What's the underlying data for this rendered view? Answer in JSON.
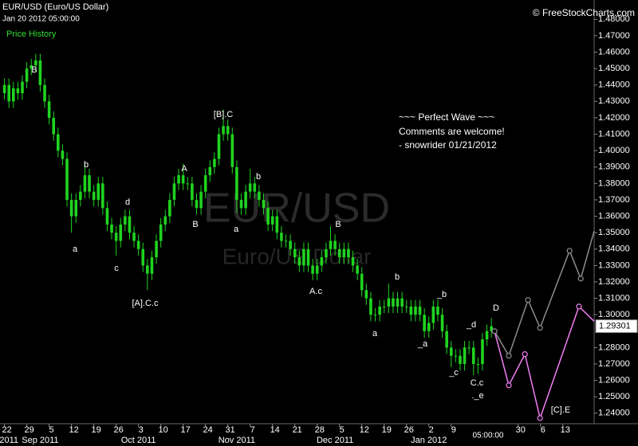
{
  "chart_data": {
    "type": "candlestick",
    "title": "EUR/USD (Euro/US Dollar)",
    "subtitle": "Jan 20 2012 05:00:00",
    "legend_label": "Price History",
    "copyright": "© FreeStockCharts.com",
    "watermark": "EUR/USD",
    "watermark_sub": "Euro/US Dollar",
    "notes": [
      "~~~ Perfect Wave ~~~",
      "Comments are welcome!",
      "- snowrider  01/21/2012"
    ],
    "annotations": [
      "B",
      "a",
      "b",
      "c",
      "d",
      "[A].C.c",
      "A",
      "B",
      "[B].C",
      "a",
      "b",
      "A.c",
      "B",
      "a",
      "b",
      "_b",
      "_a",
      "_c",
      "_d",
      "D",
      "C.c",
      "._e",
      "[C].E"
    ],
    "cursor_time": "05:00:00",
    "last_price": {
      "value": 1.29301,
      "label": "1.29301"
    },
    "color": "#1fd41f",
    "ohlc": [
      [
        1.435,
        1.444,
        1.431,
        1.44
      ],
      [
        1.44,
        1.444,
        1.426,
        1.43
      ],
      [
        1.43,
        1.442,
        1.426,
        1.438
      ],
      [
        1.438,
        1.442,
        1.431,
        1.435
      ],
      [
        1.435,
        1.446,
        1.431,
        1.442
      ],
      [
        1.442,
        1.454,
        1.438,
        1.45
      ],
      [
        1.45,
        1.456,
        1.446,
        1.452
      ],
      [
        1.452,
        1.459,
        1.448,
        1.455
      ],
      [
        1.455,
        1.459,
        1.436,
        1.44
      ],
      [
        1.44,
        1.444,
        1.426,
        1.43
      ],
      [
        1.43,
        1.434,
        1.416,
        1.42
      ],
      [
        1.42,
        1.424,
        1.406,
        1.41
      ],
      [
        1.41,
        1.414,
        1.396,
        1.4
      ],
      [
        1.4,
        1.404,
        1.391,
        1.395
      ],
      [
        1.395,
        1.399,
        1.366,
        1.37
      ],
      [
        1.37,
        1.374,
        1.35,
        1.36
      ],
      [
        1.36,
        1.374,
        1.356,
        1.37
      ],
      [
        1.37,
        1.379,
        1.366,
        1.375
      ],
      [
        1.375,
        1.392,
        1.371,
        1.385
      ],
      [
        1.385,
        1.389,
        1.371,
        1.375
      ],
      [
        1.375,
        1.379,
        1.366,
        1.37
      ],
      [
        1.37,
        1.384,
        1.366,
        1.38
      ],
      [
        1.38,
        1.384,
        1.361,
        1.365
      ],
      [
        1.365,
        1.369,
        1.351,
        1.355
      ],
      [
        1.355,
        1.359,
        1.346,
        1.35
      ],
      [
        1.35,
        1.354,
        1.336,
        1.345
      ],
      [
        1.345,
        1.359,
        1.341,
        1.355
      ],
      [
        1.355,
        1.364,
        1.351,
        1.36
      ],
      [
        1.36,
        1.364,
        1.346,
        1.35
      ],
      [
        1.35,
        1.354,
        1.341,
        1.345
      ],
      [
        1.345,
        1.349,
        1.336,
        1.34
      ],
      [
        1.34,
        1.344,
        1.326,
        1.33
      ],
      [
        1.33,
        1.334,
        1.315,
        1.325
      ],
      [
        1.325,
        1.339,
        1.321,
        1.335
      ],
      [
        1.335,
        1.349,
        1.331,
        1.345
      ],
      [
        1.345,
        1.359,
        1.341,
        1.355
      ],
      [
        1.355,
        1.364,
        1.351,
        1.36
      ],
      [
        1.36,
        1.374,
        1.356,
        1.37
      ],
      [
        1.37,
        1.384,
        1.366,
        1.38
      ],
      [
        1.38,
        1.389,
        1.376,
        1.385
      ],
      [
        1.385,
        1.392,
        1.376,
        1.38
      ],
      [
        1.38,
        1.384,
        1.376,
        1.38
      ],
      [
        1.38,
        1.384,
        1.366,
        1.37
      ],
      [
        1.37,
        1.374,
        1.361,
        1.365
      ],
      [
        1.365,
        1.379,
        1.361,
        1.375
      ],
      [
        1.375,
        1.389,
        1.371,
        1.385
      ],
      [
        1.385,
        1.394,
        1.381,
        1.39
      ],
      [
        1.39,
        1.399,
        1.386,
        1.395
      ],
      [
        1.395,
        1.414,
        1.391,
        1.41
      ],
      [
        1.41,
        1.425,
        1.406,
        1.415
      ],
      [
        1.415,
        1.419,
        1.406,
        1.41
      ],
      [
        1.41,
        1.414,
        1.386,
        1.39
      ],
      [
        1.39,
        1.394,
        1.362,
        1.37
      ],
      [
        1.37,
        1.374,
        1.361,
        1.365
      ],
      [
        1.365,
        1.379,
        1.361,
        1.375
      ],
      [
        1.375,
        1.389,
        1.371,
        1.38
      ],
      [
        1.38,
        1.384,
        1.371,
        1.375
      ],
      [
        1.375,
        1.379,
        1.366,
        1.37
      ],
      [
        1.37,
        1.374,
        1.361,
        1.365
      ],
      [
        1.365,
        1.369,
        1.351,
        1.355
      ],
      [
        1.355,
        1.364,
        1.351,
        1.36
      ],
      [
        1.36,
        1.364,
        1.346,
        1.35
      ],
      [
        1.35,
        1.354,
        1.341,
        1.345
      ],
      [
        1.345,
        1.349,
        1.341,
        1.345
      ],
      [
        1.345,
        1.349,
        1.336,
        1.34
      ],
      [
        1.34,
        1.344,
        1.331,
        1.335
      ],
      [
        1.335,
        1.339,
        1.326,
        1.33
      ],
      [
        1.33,
        1.344,
        1.326,
        1.34
      ],
      [
        1.34,
        1.344,
        1.326,
        1.33
      ],
      [
        1.33,
        1.334,
        1.321,
        1.325
      ],
      [
        1.325,
        1.334,
        1.321,
        1.33
      ],
      [
        1.33,
        1.339,
        1.326,
        1.335
      ],
      [
        1.335,
        1.344,
        1.331,
        1.34
      ],
      [
        1.34,
        1.354,
        1.336,
        1.345
      ],
      [
        1.345,
        1.349,
        1.336,
        1.34
      ],
      [
        1.34,
        1.344,
        1.331,
        1.335
      ],
      [
        1.335,
        1.344,
        1.331,
        1.34
      ],
      [
        1.34,
        1.344,
        1.331,
        1.335
      ],
      [
        1.335,
        1.339,
        1.326,
        1.33
      ],
      [
        1.33,
        1.334,
        1.321,
        1.325
      ],
      [
        1.325,
        1.329,
        1.311,
        1.315
      ],
      [
        1.315,
        1.319,
        1.306,
        1.31
      ],
      [
        1.31,
        1.314,
        1.296,
        1.3
      ],
      [
        1.3,
        1.304,
        1.296,
        1.3
      ],
      [
        1.3,
        1.309,
        1.296,
        1.305
      ],
      [
        1.305,
        1.309,
        1.301,
        1.305
      ],
      [
        1.305,
        1.319,
        1.301,
        1.31
      ],
      [
        1.31,
        1.314,
        1.301,
        1.305
      ],
      [
        1.305,
        1.314,
        1.301,
        1.31
      ],
      [
        1.31,
        1.314,
        1.301,
        1.305
      ],
      [
        1.305,
        1.309,
        1.301,
        1.305
      ],
      [
        1.305,
        1.309,
        1.296,
        1.3
      ],
      [
        1.3,
        1.309,
        1.296,
        1.305
      ],
      [
        1.305,
        1.309,
        1.296,
        1.3
      ],
      [
        1.3,
        1.304,
        1.286,
        1.29
      ],
      [
        1.29,
        1.299,
        1.286,
        1.295
      ],
      [
        1.295,
        1.309,
        1.291,
        1.305
      ],
      [
        1.305,
        1.309,
        1.296,
        1.3
      ],
      [
        1.3,
        1.304,
        1.286,
        1.29
      ],
      [
        1.29,
        1.294,
        1.276,
        1.28
      ],
      [
        1.28,
        1.284,
        1.268,
        1.275
      ],
      [
        1.275,
        1.279,
        1.271,
        1.275
      ],
      [
        1.275,
        1.279,
        1.266,
        1.27
      ],
      [
        1.27,
        1.284,
        1.266,
        1.28
      ],
      [
        1.28,
        1.284,
        1.276,
        1.28
      ],
      [
        1.28,
        1.284,
        1.263,
        1.27
      ],
      [
        1.27,
        1.274,
        1.264,
        1.27
      ],
      [
        1.27,
        1.289,
        1.266,
        1.285
      ],
      [
        1.285,
        1.294,
        1.281,
        1.29
      ],
      [
        1.29,
        1.298,
        1.286,
        1.293
      ]
    ],
    "projections": [
      {
        "color": "#f27ff2",
        "x": [
          109.7,
          112.9,
          116.5,
          119.9,
          128.6,
          132
        ],
        "values": [
          1.29,
          1.257,
          1.276,
          1.237,
          1.305,
          1.296
        ]
      },
      {
        "color": "#8c8c8c",
        "x": [
          109.7,
          112.9,
          117.2,
          119.9,
          126.5,
          129,
          132
        ],
        "values": [
          1.29,
          1.275,
          1.309,
          1.292,
          1.339,
          1.322,
          1.351
        ]
      }
    ],
    "xlim": [
      -1,
      132
    ],
    "ylim": [
      1.2336,
      1.4918
    ],
    "xticks": [
      {
        "value": 0,
        "label": "22"
      },
      {
        "value": 5,
        "label": "29"
      },
      {
        "value": 10,
        "label": "5"
      },
      {
        "value": 15,
        "label": "12"
      },
      {
        "value": 20,
        "label": "19"
      },
      {
        "value": 25,
        "label": "26"
      },
      {
        "value": 30,
        "label": "3"
      },
      {
        "value": 35,
        "label": "10"
      },
      {
        "value": 40,
        "label": "17"
      },
      {
        "value": 45,
        "label": "24"
      },
      {
        "value": 50,
        "label": "31"
      },
      {
        "value": 55,
        "label": "7"
      },
      {
        "value": 60,
        "label": "14"
      },
      {
        "value": 65,
        "label": "21"
      },
      {
        "value": 70,
        "label": "28"
      },
      {
        "value": 75,
        "label": "5"
      },
      {
        "value": 80,
        "label": "12"
      },
      {
        "value": 85,
        "label": "19"
      },
      {
        "value": 90,
        "label": "26"
      },
      {
        "value": 95,
        "label": "2"
      },
      {
        "value": 100,
        "label": "9"
      },
      {
        "value": 115,
        "label": "30"
      },
      {
        "value": 120,
        "label": "6"
      },
      {
        "value": 125,
        "label": "13"
      }
    ],
    "month_ticks": [
      {
        "value": 1,
        "label": "2011"
      },
      {
        "value": 8,
        "label": "Sep 2011"
      },
      {
        "value": 30,
        "label": "Oct 2011"
      },
      {
        "value": 52,
        "label": "Nov 2011"
      },
      {
        "value": 74,
        "label": "Dec 2011"
      },
      {
        "value": 95,
        "label": "Jan 2012"
      }
    ],
    "yticks": [
      {
        "value": 1.48,
        "label": "1.48000"
      },
      {
        "value": 1.47,
        "label": "1.47000"
      },
      {
        "value": 1.46,
        "label": "1.46000"
      },
      {
        "value": 1.45,
        "label": "1.45000"
      },
      {
        "value": 1.44,
        "label": "1.44000"
      },
      {
        "value": 1.43,
        "label": "1.43000"
      },
      {
        "value": 1.42,
        "label": "1.42000"
      },
      {
        "value": 1.41,
        "label": "1.41000"
      },
      {
        "value": 1.4,
        "label": "1.40000"
      },
      {
        "value": 1.39,
        "label": "1.39000"
      },
      {
        "value": 1.38,
        "label": "1.38000"
      },
      {
        "value": 1.37,
        "label": "1.37000"
      },
      {
        "value": 1.36,
        "label": "1.36000"
      },
      {
        "value": 1.35,
        "label": "1.35000"
      },
      {
        "value": 1.34,
        "label": "1.34000"
      },
      {
        "value": 1.33,
        "label": "1.33000"
      },
      {
        "value": 1.32,
        "label": "1.32000"
      },
      {
        "value": 1.31,
        "label": "1.31000"
      },
      {
        "value": 1.3,
        "label": "1.30000"
      },
      {
        "value": 1.28,
        "label": "1.28000"
      },
      {
        "value": 1.27,
        "label": "1.27000"
      },
      {
        "value": 1.26,
        "label": "1.26000"
      },
      {
        "value": 1.25,
        "label": "1.25000"
      },
      {
        "value": 1.24,
        "label": "1.24000"
      }
    ]
  }
}
